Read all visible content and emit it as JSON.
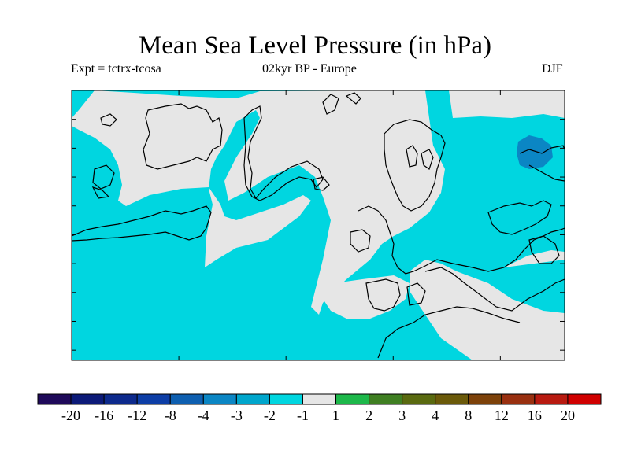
{
  "title": "Mean Sea Level Pressure (in hPa)",
  "experiment": "Expt = tctrx-tcosa",
  "period": "02kyr BP - Europe",
  "season": "DJF",
  "colorbar": {
    "colors": [
      "#1f0a5a",
      "#0c1a78",
      "#0d2a8c",
      "#0d3ea6",
      "#0e5fb0",
      "#0b86c4",
      "#00a6cc",
      "#00d6e0",
      "#e6e6e6",
      "#1db84a",
      "#3f7f22",
      "#5a6a10",
      "#6b5a0a",
      "#7d420a",
      "#993010",
      "#b81a10",
      "#d00000"
    ],
    "labels": [
      "-20",
      "-16",
      "-12",
      "-8",
      "-4",
      "-3",
      "-2",
      "-1",
      "1",
      "2",
      "3",
      "4",
      "8",
      "12",
      "16",
      "20"
    ]
  },
  "map_fill": {
    "background_value": "-2 to -1",
    "background_color": "#00d6e0",
    "near_zero_color": "#e6e6e6",
    "deep_negative_color": "#0b86c4"
  }
}
